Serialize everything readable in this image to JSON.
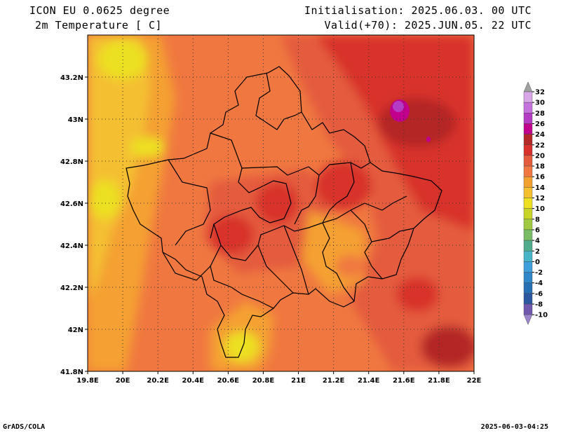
{
  "header": {
    "model": "ICON EU 0.0625 degree",
    "variable": "2m Temperature [ C]",
    "initialisation": "Initialisation: 2025.06.03. 00 UTC",
    "valid": "Valid(+70): 2025.JUN.05. 22 UTC"
  },
  "footer": {
    "software": "GrADS/COLA",
    "timestamp": "2025-06-03-04:25"
  },
  "map": {
    "lon_range": [
      19.8,
      22.0
    ],
    "lat_range": [
      41.8,
      43.4
    ],
    "grid": "dotted",
    "x_ticks": [
      "19.8E",
      "20E",
      "20.2E",
      "20.4E",
      "20.6E",
      "20.8E",
      "21E",
      "21.2E",
      "21.4E",
      "21.6E",
      "21.8E",
      "22E"
    ],
    "y_ticks": [
      "41.8N",
      "42N",
      "42.2N",
      "42.4N",
      "42.6N",
      "42.8N",
      "43N",
      "43.2N"
    ]
  },
  "colorbar": {
    "labels": [
      "32",
      "30",
      "28",
      "26",
      "24",
      "22",
      "20",
      "18",
      "16",
      "14",
      "12",
      "10",
      "8",
      "6",
      "4",
      "2",
      "0",
      "-2",
      "-4",
      "-6",
      "-8",
      "-10"
    ],
    "colors": [
      "#d8a6e6",
      "#c672dc",
      "#b43cc4",
      "#c0008c",
      "#b42828",
      "#d8302a",
      "#e45c3c",
      "#f07840",
      "#f4a030",
      "#f4c030",
      "#ece020",
      "#c8d428",
      "#a0c840",
      "#78bc64",
      "#50ac8c",
      "#48b4c8",
      "#40a0dc",
      "#3088c8",
      "#2870b4",
      "#2c58a0",
      "#7058ac"
    ],
    "top_arrow_color": "#a0a0a0",
    "bottom_arrow_color": "#9c84cc"
  }
}
